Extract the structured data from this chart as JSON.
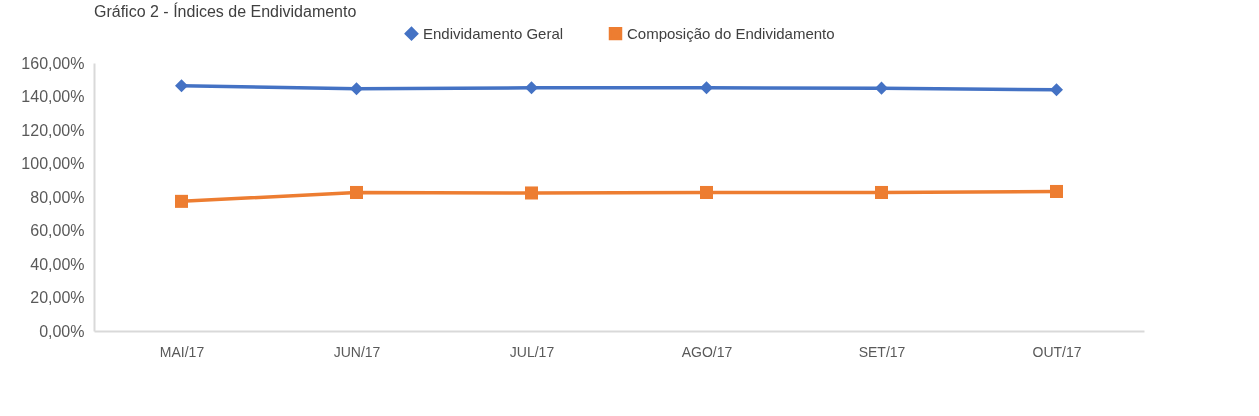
{
  "chart_data": {
    "type": "line",
    "title": "Gráfico 2 - Índices de Endividamento",
    "categories": [
      "MAI/17",
      "JUN/17",
      "JUL/17",
      "AGO/17",
      "SET/17",
      "OUT/17"
    ],
    "series": [
      {
        "name": "Endividamento Geral",
        "color": "#4472c4",
        "marker": "diamond",
        "values": [
          146.4,
          144.6,
          145.2,
          145.2,
          145.0,
          144.0
        ]
      },
      {
        "name": "Composição do Endividamento",
        "color": "#ed7d31",
        "marker": "square",
        "values": [
          77.4,
          82.7,
          82.4,
          82.7,
          82.7,
          83.3
        ]
      }
    ],
    "ylim": [
      0,
      160
    ],
    "yticks": [
      {
        "value": 0,
        "label": "0,00%"
      },
      {
        "value": 20,
        "label": "20,00%"
      },
      {
        "value": 40,
        "label": "40,00%"
      },
      {
        "value": 60,
        "label": "60,00%"
      },
      {
        "value": 80,
        "label": "80,00%"
      },
      {
        "value": 100,
        "label": "100,00%"
      },
      {
        "value": 120,
        "label": "120,00%"
      },
      {
        "value": 140,
        "label": "140,00%"
      },
      {
        "value": 160,
        "label": "160,00%"
      }
    ],
    "grid": false,
    "legend": "top",
    "line_style": "solid"
  }
}
